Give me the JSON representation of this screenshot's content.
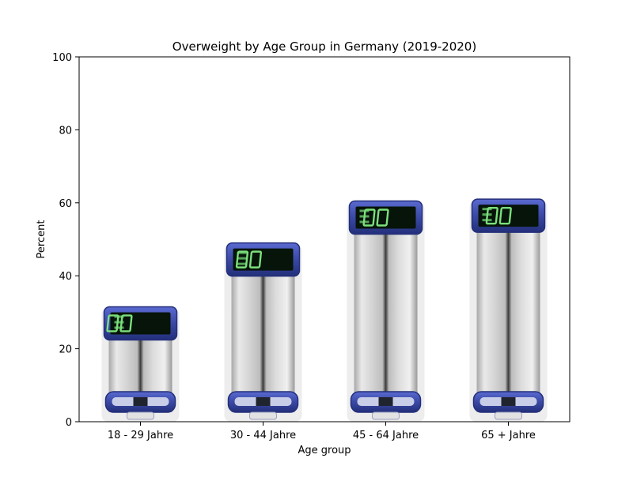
{
  "chart_data": {
    "type": "bar",
    "title": "Overweight by Age Group in Germany (2019-2020)",
    "xlabel": "Age group",
    "ylabel": "Percent",
    "categories": [
      "18 - 29 Jahre",
      "30 - 44 Jahre",
      "45 - 64 Jahre",
      "65 + Jahre"
    ],
    "values": [
      31.5,
      49,
      60.5,
      61
    ],
    "ylim": [
      0,
      100
    ],
    "yticks": [
      0,
      20,
      40,
      60,
      80,
      100
    ],
    "grid": false,
    "bar_style": "pictorial-scale",
    "colors": {
      "frame": "#000000",
      "scale_blue": "#3a49a4",
      "scale_blue_dark": "#232f7a",
      "scale_body": "#d8d8d8",
      "display_bg": "#06140a",
      "display_digits": "#7be07b"
    }
  }
}
